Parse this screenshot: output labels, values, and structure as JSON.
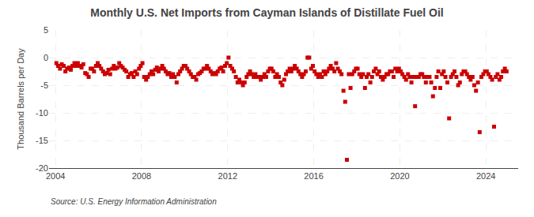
{
  "chart_data": {
    "type": "scatter",
    "title": "Monthly U.S. Net Imports from Cayman Islands of Distillate Fuel Oil",
    "ylabel": "Thousand Barrels per Day",
    "annotations": [
      "Source: U.S. Energy Information Administration"
    ],
    "color": "#cc0000",
    "marker": "square",
    "grid": true,
    "xlim": [
      2003.7,
      2025.5
    ],
    "xticks": [
      2004,
      2008,
      2012,
      2016,
      2020,
      2024
    ],
    "ylim": [
      -20,
      5
    ],
    "yticks": [
      -20,
      -15,
      -10,
      -5,
      0,
      5
    ],
    "x": [
      2004.04,
      2004.12,
      2004.21,
      2004.29,
      2004.38,
      2004.46,
      2004.54,
      2004.63,
      2004.71,
      2004.79,
      2004.88,
      2004.96,
      2005.04,
      2005.12,
      2005.21,
      2005.29,
      2005.38,
      2005.46,
      2005.54,
      2005.63,
      2005.71,
      2005.79,
      2005.88,
      2005.96,
      2006.04,
      2006.12,
      2006.21,
      2006.29,
      2006.38,
      2006.46,
      2006.54,
      2006.63,
      2006.71,
      2006.79,
      2006.88,
      2006.96,
      2007.04,
      2007.12,
      2007.21,
      2007.29,
      2007.38,
      2007.46,
      2007.54,
      2007.63,
      2007.71,
      2007.79,
      2007.88,
      2007.96,
      2008.04,
      2008.12,
      2008.21,
      2008.29,
      2008.38,
      2008.46,
      2008.54,
      2008.63,
      2008.71,
      2008.79,
      2008.88,
      2008.96,
      2009.04,
      2009.12,
      2009.21,
      2009.29,
      2009.38,
      2009.46,
      2009.54,
      2009.63,
      2009.71,
      2009.79,
      2009.88,
      2009.96,
      2010.04,
      2010.12,
      2010.21,
      2010.29,
      2010.38,
      2010.46,
      2010.54,
      2010.63,
      2010.71,
      2010.79,
      2010.88,
      2010.96,
      2011.04,
      2011.12,
      2011.21,
      2011.29,
      2011.38,
      2011.46,
      2011.54,
      2011.63,
      2011.71,
      2011.79,
      2011.88,
      2011.96,
      2012.04,
      2012.12,
      2012.21,
      2012.29,
      2012.38,
      2012.46,
      2012.54,
      2012.63,
      2012.71,
      2012.79,
      2012.88,
      2012.96,
      2013.04,
      2013.12,
      2013.21,
      2013.29,
      2013.38,
      2013.46,
      2013.54,
      2013.63,
      2013.71,
      2013.79,
      2013.88,
      2013.96,
      2014.04,
      2014.12,
      2014.21,
      2014.29,
      2014.38,
      2014.46,
      2014.54,
      2014.63,
      2014.71,
      2014.79,
      2014.88,
      2014.96,
      2015.04,
      2015.12,
      2015.21,
      2015.29,
      2015.38,
      2015.46,
      2015.54,
      2015.63,
      2015.71,
      2015.79,
      2015.88,
      2015.96,
      2016.04,
      2016.12,
      2016.21,
      2016.29,
      2016.38,
      2016.46,
      2016.54,
      2016.63,
      2016.71,
      2016.79,
      2016.88,
      2016.96,
      2017.04,
      2017.12,
      2017.21,
      2017.29,
      2017.38,
      2017.46,
      2017.54,
      2017.63,
      2017.71,
      2017.79,
      2017.88,
      2017.96,
      2018.04,
      2018.12,
      2018.21,
      2018.29,
      2018.38,
      2018.46,
      2018.54,
      2018.63,
      2018.71,
      2018.79,
      2018.88,
      2018.96,
      2019.04,
      2019.12,
      2019.21,
      2019.29,
      2019.38,
      2019.46,
      2019.54,
      2019.63,
      2019.71,
      2019.79,
      2019.88,
      2019.96,
      2020.04,
      2020.12,
      2020.21,
      2020.29,
      2020.38,
      2020.46,
      2020.54,
      2020.63,
      2020.71,
      2020.79,
      2020.88,
      2020.96,
      2021.04,
      2021.12,
      2021.21,
      2021.29,
      2021.38,
      2021.46,
      2021.54,
      2021.63,
      2021.71,
      2021.79,
      2021.88,
      2021.96,
      2022.04,
      2022.12,
      2022.21,
      2022.29,
      2022.38,
      2022.46,
      2022.54,
      2022.63,
      2022.71,
      2022.79,
      2022.88,
      2022.96,
      2023.04,
      2023.12,
      2023.21,
      2023.29,
      2023.38,
      2023.46,
      2023.54,
      2023.63,
      2023.71,
      2023.79,
      2023.88,
      2023.96,
      2024.04,
      2024.12,
      2024.21,
      2024.29,
      2024.38,
      2024.46,
      2024.54,
      2024.63,
      2024.71,
      2024.79,
      2024.88,
      2024.96
    ],
    "values": [
      -1.0,
      -1.5,
      -2.0,
      -1.2,
      -1.5,
      -2.5,
      -2.0,
      -1.8,
      -2.2,
      -1.5,
      -1.0,
      -1.5,
      -1.0,
      -1.5,
      -1.8,
      -1.2,
      -2.8,
      -3.0,
      -3.5,
      -2.0,
      -2.0,
      -2.5,
      -1.5,
      -1.0,
      -1.5,
      -2.0,
      -2.5,
      -3.0,
      -2.8,
      -2.2,
      -3.0,
      -2.0,
      -1.5,
      -2.0,
      -1.8,
      -1.0,
      -1.5,
      -1.8,
      -2.2,
      -2.5,
      -3.5,
      -3.0,
      -2.8,
      -3.5,
      -2.5,
      -3.0,
      -2.0,
      -1.5,
      -1.0,
      -3.5,
      -4.0,
      -3.5,
      -3.0,
      -2.5,
      -3.0,
      -2.2,
      -1.8,
      -2.5,
      -2.0,
      -1.5,
      -2.0,
      -2.5,
      -3.0,
      -2.8,
      -3.5,
      -3.0,
      -3.5,
      -4.5,
      -3.0,
      -2.5,
      -2.0,
      -1.5,
      -1.5,
      -2.0,
      -2.5,
      -3.0,
      -3.5,
      -3.5,
      -4.0,
      -3.0,
      -2.8,
      -2.5,
      -2.0,
      -2.0,
      -1.5,
      -2.0,
      -2.5,
      -3.0,
      -2.8,
      -3.0,
      -2.5,
      -2.0,
      -1.8,
      -2.5,
      -1.5,
      -1.0,
      0.0,
      -1.5,
      -2.0,
      -2.5,
      -3.5,
      -4.5,
      -4.0,
      -4.5,
      -5.0,
      -4.5,
      -3.5,
      -3.0,
      -2.5,
      -3.0,
      -3.5,
      -3.0,
      -3.5,
      -3.5,
      -4.0,
      -3.5,
      -3.0,
      -3.5,
      -2.5,
      -2.0,
      -2.0,
      -2.5,
      -3.5,
      -3.0,
      -3.5,
      -4.5,
      -5.0,
      -4.0,
      -3.0,
      -2.5,
      -2.0,
      -2.5,
      -2.0,
      -1.5,
      -2.0,
      -2.5,
      -3.0,
      -3.5,
      -3.0,
      -2.5,
      0.0,
      0.0,
      -2.0,
      -1.5,
      -2.5,
      -3.0,
      -3.5,
      -3.0,
      -3.5,
      -2.5,
      -3.0,
      -2.5,
      -2.0,
      -1.5,
      -2.0,
      -2.5,
      -1.0,
      -2.0,
      -2.5,
      -3.0,
      -6.0,
      -8.0,
      -18.5,
      -3.0,
      -5.5,
      -3.0,
      -2.5,
      -2.0,
      -2.0,
      -3.0,
      -3.5,
      -3.0,
      -5.5,
      -3.5,
      -3.0,
      -4.5,
      -3.5,
      -2.5,
      -2.0,
      -3.0,
      -2.5,
      -3.5,
      -4.0,
      -3.5,
      -3.0,
      -3.0,
      -2.5,
      -2.5,
      -3.5,
      -2.0,
      -2.5,
      -2.0,
      -2.5,
      -3.0,
      -3.5,
      -4.0,
      -3.0,
      -3.5,
      -4.5,
      -3.5,
      -8.8,
      -3.5,
      -3.5,
      -3.0,
      -3.0,
      -3.5,
      -4.5,
      -3.5,
      -3.5,
      -4.5,
      -7.0,
      -5.5,
      -3.5,
      -2.5,
      -5.5,
      -3.0,
      -2.5,
      -3.5,
      -4.5,
      -11.0,
      -3.5,
      -3.0,
      -2.5,
      -3.5,
      -5.0,
      -4.5,
      -3.0,
      -2.5,
      -2.5,
      -3.0,
      -3.5,
      -4.0,
      -3.5,
      -5.0,
      -6.0,
      -4.5,
      -13.5,
      -3.5,
      -3.0,
      -2.5,
      -2.5,
      -3.0,
      -3.5,
      -4.0,
      -12.5,
      -3.5,
      -3.0,
      -4.0,
      -3.5,
      -2.5,
      -2.0,
      -2.5
    ]
  }
}
